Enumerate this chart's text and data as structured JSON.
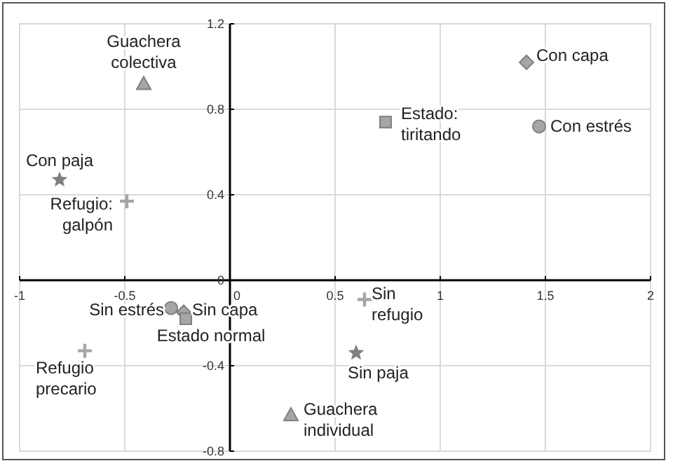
{
  "chart_data": {
    "type": "scatter",
    "xlim": [
      -1,
      2
    ],
    "xticks": [
      -1,
      -0.5,
      0,
      0.5,
      1,
      1.5,
      2
    ],
    "ylim": [
      -0.8,
      1.2
    ],
    "yticks": [
      -0.8,
      -0.4,
      0,
      0.4,
      0.8,
      1.2
    ],
    "grid": true,
    "series": [
      {
        "marker": "triangle",
        "color": "#a6a6a6",
        "x": [
          -0.41,
          0.29
        ],
        "values": [
          0.92,
          -0.63
        ]
      },
      {
        "marker": "diamond",
        "color": "#a6a6a6",
        "x": [
          1.41,
          -0.22
        ],
        "values": [
          1.02,
          -0.15
        ]
      },
      {
        "marker": "circle",
        "color": "#a6a6a6",
        "x": [
          1.47,
          -0.28
        ],
        "values": [
          0.72,
          -0.13
        ]
      },
      {
        "marker": "square",
        "color": "#a6a6a6",
        "x": [
          0.74,
          -0.21
        ],
        "values": [
          0.74,
          -0.18
        ]
      },
      {
        "marker": "star",
        "color": "#7f7f7f",
        "x": [
          -0.81,
          0.6
        ],
        "values": [
          0.47,
          -0.34
        ]
      },
      {
        "marker": "cross",
        "color": "#a6a6a6",
        "x": [
          -0.49,
          0.64,
          -0.69
        ],
        "values": [
          0.37,
          -0.09,
          -0.33
        ]
      }
    ],
    "annotations": [
      {
        "text": "Guachera\ncolectiva",
        "x": -0.41,
        "y": 0.92
      },
      {
        "text": "Con capa",
        "x": 1.41,
        "y": 1.02
      },
      {
        "text": "Con estrés",
        "x": 1.47,
        "y": 0.72
      },
      {
        "text": "Estado:\ntiritando",
        "x": 0.74,
        "y": 0.74
      },
      {
        "text": "Con paja",
        "x": -0.81,
        "y": 0.47
      },
      {
        "text": "Refugio:\ngalpón",
        "x": -0.49,
        "y": 0.37
      },
      {
        "text": "Sin estrés",
        "x": -0.28,
        "y": -0.13
      },
      {
        "text": "Sin capa",
        "x": -0.22,
        "y": -0.15
      },
      {
        "text": "Estado normal",
        "x": -0.21,
        "y": -0.18
      },
      {
        "text": "Refugio\nprecario",
        "x": -0.69,
        "y": -0.33
      },
      {
        "text": "Guachera\nindividual",
        "x": 0.29,
        "y": -0.63
      },
      {
        "text": "Sin\nrefugio",
        "x": 0.64,
        "y": -0.09
      },
      {
        "text": "Sin paja",
        "x": 0.6,
        "y": -0.34
      }
    ]
  }
}
